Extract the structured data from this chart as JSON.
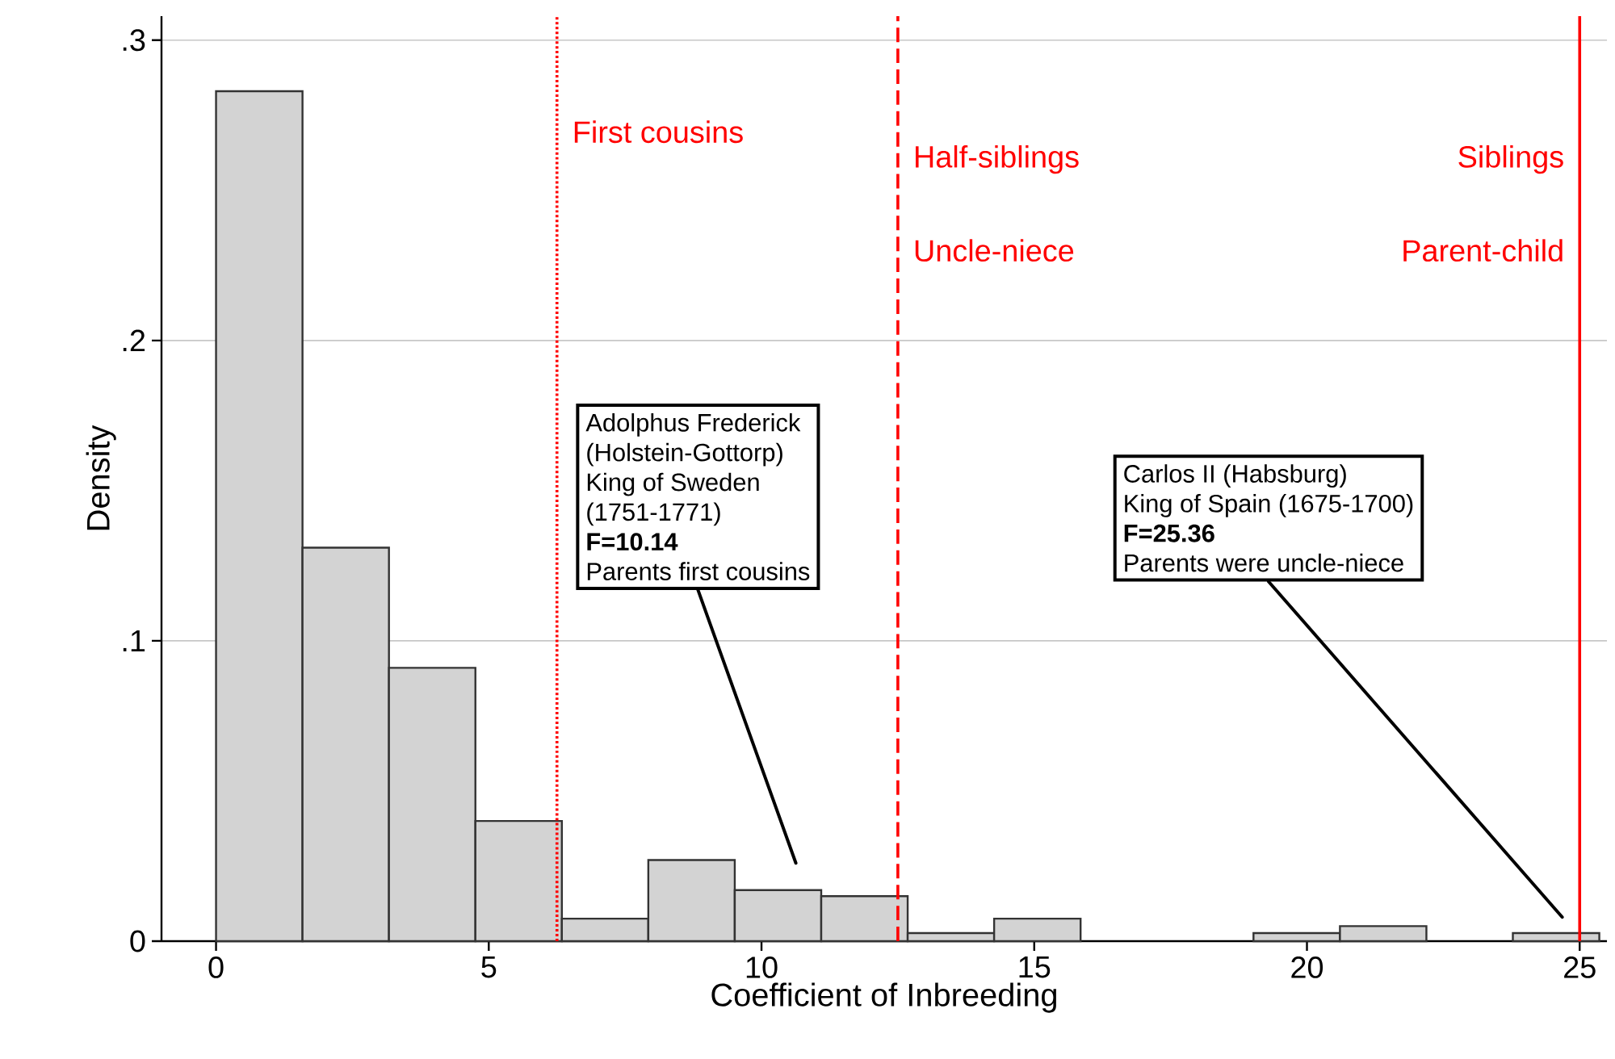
{
  "chart_data": {
    "type": "histogram",
    "xlabel": "Coefficient of Inbreeding",
    "ylabel": "Density",
    "bins": [
      0,
      1.585,
      3.17,
      4.755,
      6.34,
      7.925,
      9.51,
      11.095,
      12.68,
      14.265,
      15.85,
      17.435,
      19.02,
      20.605,
      22.19,
      23.775,
      25.36
    ],
    "values": [
      0.283,
      0.131,
      0.091,
      0.04,
      0.0075,
      0.027,
      0.017,
      0.015,
      0.0027,
      0.0075,
      0,
      0,
      0.0027,
      0.005,
      0,
      0.0027
    ],
    "color": "#d3d3d3",
    "xlim": [
      -1,
      25.5
    ],
    "ylim": [
      0,
      0.308
    ],
    "xticks": [
      0,
      5,
      10,
      15,
      20,
      25
    ],
    "yticks": [
      0,
      {
        "value": 0.1,
        "label": ".1"
      },
      {
        "value": 0.2,
        "label": ".2"
      },
      {
        "value": 0.3,
        "label": ".3"
      }
    ],
    "grid": "y",
    "ref_lines": [
      {
        "axis": "x",
        "value": 6.25,
        "label": "First cousins",
        "color": "#ff0000",
        "line_style": "dotted"
      },
      {
        "axis": "x",
        "value": 12.5,
        "label": "Half-siblings",
        "color": "#ff0000",
        "line_style": "dashed"
      },
      {
        "axis": "x",
        "value": 25,
        "label": "Siblings",
        "color": "#ff0000",
        "line_style": "solid"
      }
    ],
    "annotations": [
      {
        "text": "Uncle-niece",
        "x": 12.5,
        "y": 0.23
      },
      {
        "text": "Parent-child",
        "x": 25,
        "y": 0.23
      },
      "Adolphus Frederick",
      "(Holstein-Gottorp)",
      "King of Sweden",
      "(1751-1771)",
      "**F=10.14**",
      "Parents first cousins",
      "Carlos II (Habsburg)",
      "King of Spain (1675-1700)",
      "**F=25.36**",
      "Parents were uncle-niece"
    ]
  }
}
